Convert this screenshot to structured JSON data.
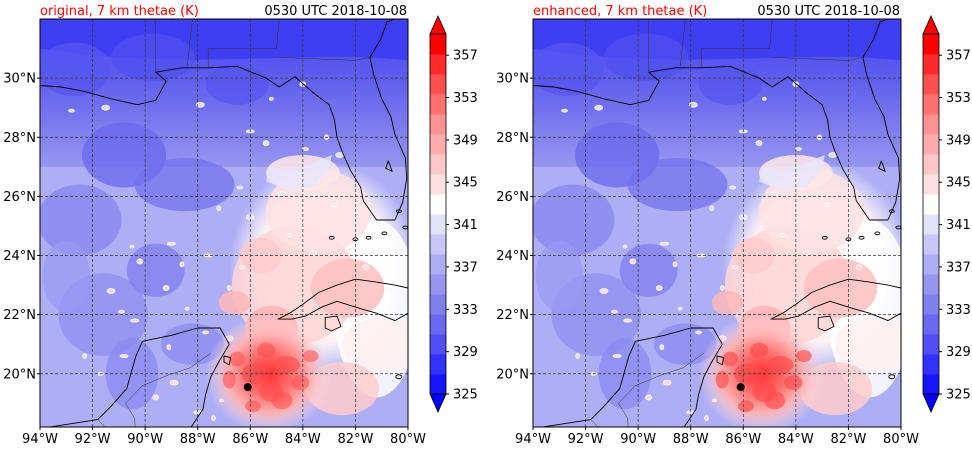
{
  "panels": [
    {
      "id": "original",
      "title_left": "original, 7 km thetae (K)",
      "title_right": "0530 UTC 2018-10-08"
    },
    {
      "id": "enhanced",
      "title_left": "enhanced, 7 km thetae (K)",
      "title_right": "0530 UTC 2018-10-08"
    }
  ],
  "axes": {
    "lon_ticks": [
      "94°W",
      "92°W",
      "90°W",
      "88°W",
      "86°W",
      "84°W",
      "82°W",
      "80°W"
    ],
    "lat_ticks": [
      "20°N",
      "22°N",
      "24°N",
      "26°N",
      "28°N",
      "30°N"
    ]
  },
  "colorbar": {
    "labels": [
      "325",
      "329",
      "333",
      "337",
      "341",
      "345",
      "349",
      "353",
      "357"
    ],
    "levels": [
      325,
      327,
      329,
      331,
      333,
      335,
      337,
      339,
      341,
      343,
      345,
      347,
      349,
      351,
      353,
      355,
      357,
      359
    ],
    "colors": [
      "#1414ff",
      "#3232ff",
      "#5050f5",
      "#6a6af0",
      "#8080ee",
      "#9696f0",
      "#aeaef5",
      "#c8c8f8",
      "#e2e2fb",
      "#ffffff",
      "#ffe0e0",
      "#ffc6c6",
      "#ffacac",
      "#ff9292",
      "#ff7070",
      "#ff5050",
      "#ff2a2a",
      "#ff0000"
    ],
    "under_color": "#0000ff",
    "over_color": "#ff0000"
  },
  "theme": {
    "title_left_color": "#ff0000",
    "coast_color": "#000000",
    "grid_color": "#333333",
    "storm_marker_color": "#000000"
  },
  "chart_data": {
    "type": "heatmap",
    "variable": "7 km thetae (K)",
    "time": "0530 UTC 2018-10-08",
    "lon_range": [
      -94,
      -80
    ],
    "lat_range": [
      18.2,
      32
    ],
    "color_range": [
      325,
      359
    ],
    "storm_center": {
      "lon": -86.1,
      "lat": 19.55
    }
  }
}
